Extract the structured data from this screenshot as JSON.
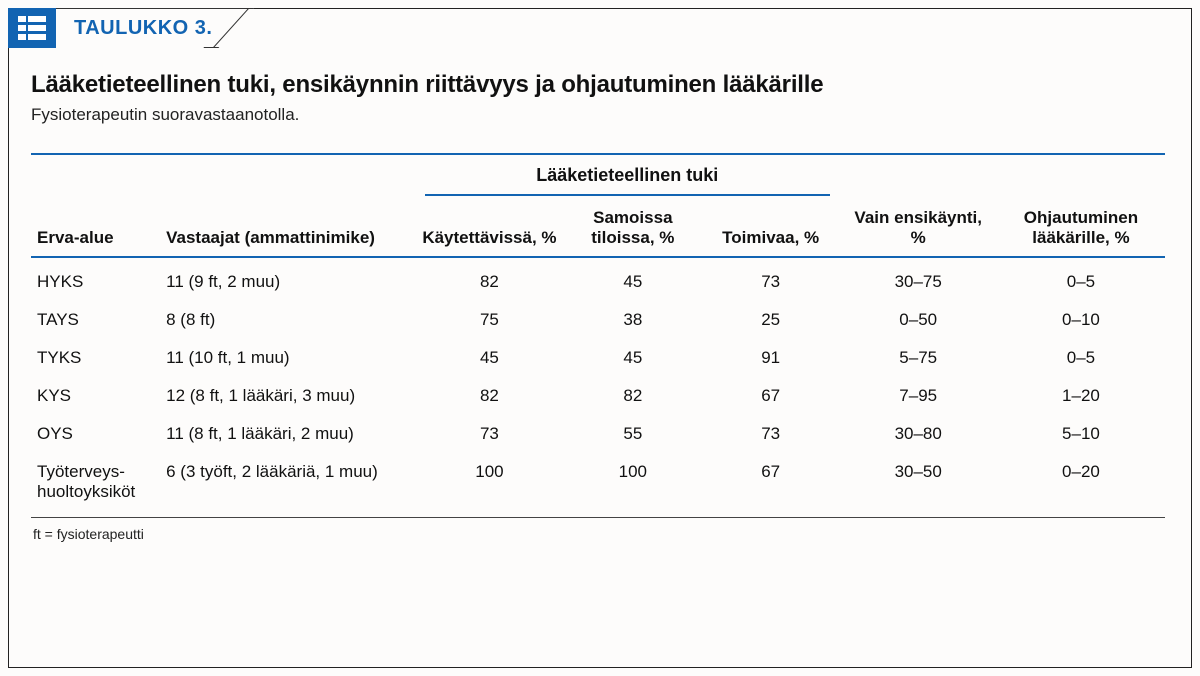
{
  "header": {
    "tab_label": "TAULUKKO 3.",
    "accent_color": "#1264b2"
  },
  "title": "Lääketieteellinen tuki, ensikäynnin riittävyys ja ohjautuminen lääkärille",
  "subtitle": "Fysioterapeutin suoravastaanotolla.",
  "table": {
    "columns": {
      "erva": "Erva-alue",
      "vastaajat": "Vastaajat (ammattinimike)",
      "group": "Lääketieteellinen tuki",
      "kaytettavissa": "Käytettävissä, %",
      "samoissa": "Samoissa tiloissa, %",
      "toimivaa": "Toimivaa, %",
      "vain": "Vain ensikäynti, %",
      "ohj": "Ohjautuminen lääkärille, %"
    },
    "rows": [
      {
        "erva": "HYKS",
        "vastaajat": "11 (9 ft, 2 muu)",
        "k": "82",
        "s": "45",
        "t": "73",
        "ve": "30–75",
        "ol": "0–5"
      },
      {
        "erva": "TAYS",
        "vastaajat": "8 (8 ft)",
        "k": "75",
        "s": "38",
        "t": "25",
        "ve": "0–50",
        "ol": "0–10"
      },
      {
        "erva": "TYKS",
        "vastaajat": "11 (10 ft, 1 muu)",
        "k": "45",
        "s": "45",
        "t": "91",
        "ve": "5–75",
        "ol": "0–5"
      },
      {
        "erva": "KYS",
        "vastaajat": "12 (8 ft, 1 lääkäri, 3 muu)",
        "k": "82",
        "s": "82",
        "t": "67",
        "ve": "7–95",
        "ol": "1–20"
      },
      {
        "erva": "OYS",
        "vastaajat": "11 (8 ft, 1 lääkäri, 2 muu)",
        "k": "73",
        "s": "55",
        "t": "73",
        "ve": "30–80",
        "ol": "5–10"
      },
      {
        "erva": "Työterveys-huoltoyksiköt",
        "vastaajat": "6 (3 työft, 2 lääkäriä, 1 muu)",
        "k": "100",
        "s": "100",
        "t": "67",
        "ve": "30–50",
        "ol": "0–20"
      }
    ]
  },
  "footnote": "ft = fysioterapeutti",
  "styling": {
    "background": "#fdfcfb",
    "text_color": "#111",
    "rule_color": "#1264b2",
    "thin_rule": "#444",
    "title_fontsize": 24,
    "body_fontsize": 17,
    "footnote_fontsize": 14
  }
}
